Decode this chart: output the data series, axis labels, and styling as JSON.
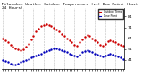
{
  "title": "Milwaukee Weather Outdoor Temperature (vs) Dew Point (Last 24 Hours)",
  "title_fontsize": 3.2,
  "background_color": "#ffffff",
  "grid_color": "#aaaaaa",
  "ylim": [
    36,
    92
  ],
  "yticks": [
    44,
    54,
    64,
    74,
    84
  ],
  "ytick_labels": [
    "44",
    "54",
    "64",
    "74",
    "84"
  ],
  "ylabel_fontsize": 3.2,
  "xlabel_fontsize": 2.8,
  "num_points": 48,
  "temp_color": "#cc0000",
  "dew_color": "#0000bb",
  "temp_values": [
    64,
    62,
    60,
    58,
    56,
    55,
    54,
    53,
    54,
    56,
    59,
    63,
    66,
    70,
    73,
    75,
    76,
    77,
    76,
    75,
    74,
    72,
    70,
    68,
    66,
    64,
    62,
    60,
    58,
    57,
    60,
    63,
    65,
    67,
    66,
    64,
    62,
    60,
    58,
    57,
    59,
    61,
    62,
    61,
    60,
    59,
    58,
    57
  ],
  "dew_values": [
    44,
    43,
    42,
    41,
    40,
    40,
    41,
    42,
    43,
    44,
    45,
    46,
    47,
    48,
    49,
    50,
    51,
    52,
    53,
    54,
    55,
    55,
    54,
    53,
    52,
    51,
    50,
    49,
    48,
    47,
    49,
    51,
    52,
    53,
    52,
    51,
    50,
    49,
    48,
    47,
    48,
    49,
    50,
    49,
    48,
    47,
    46,
    45
  ],
  "xtick_step": 4,
  "legend_labels": [
    "Outdoor Temp",
    "Dew Point"
  ],
  "legend_colors": [
    "#cc0000",
    "#0000bb"
  ]
}
